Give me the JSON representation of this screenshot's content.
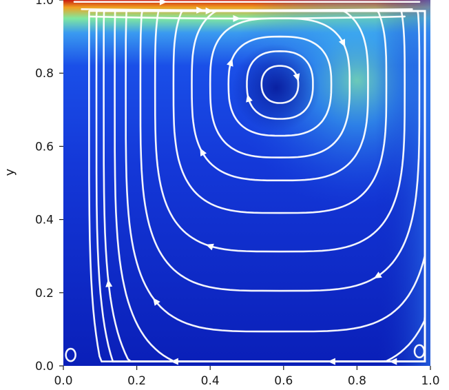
{
  "chart_data": {
    "type": "streamplot",
    "description_fields": "lid-driven cavity velocity magnitude with streamlines",
    "title": "",
    "xlabel": "",
    "ylabel": "y",
    "xlim": [
      0.0,
      1.0
    ],
    "ylim": [
      0.0,
      1.0
    ],
    "x_ticks": [
      "0.0",
      "0.2",
      "0.4",
      "0.6",
      "0.8",
      "1.0"
    ],
    "y_ticks": [
      "0.0",
      "0.2",
      "0.4",
      "0.6",
      "0.8",
      "1.0"
    ],
    "colormap": "jet",
    "vortex_center": {
      "x": 0.59,
      "y": 0.77
    },
    "lid_velocity_color": "#d21a12",
    "background_color": "#0a22c8",
    "streamline_color": "#ffffff",
    "grid": false,
    "legend": "none",
    "streamlines": [
      {
        "rx": 0.05,
        "ry": 0.05,
        "arrow_angle": 20
      },
      {
        "rx": 0.09,
        "ry": 0.09,
        "arrow_angle": 200
      },
      {
        "rx": 0.14,
        "ry": 0.13,
        "arrow_angle": 160
      },
      {
        "rx": 0.19,
        "ry": 0.18,
        "arrow_angle": 30
      },
      {
        "rx": 0.24,
        "ry": 0.23,
        "arrow_angle": 215
      },
      {
        "rx": 0.29,
        "ry": 0.3,
        "arrow_angle": 120
      },
      {
        "rx": 0.34,
        "ry": 0.38,
        "arrow_angle": 250
      },
      {
        "rx": 0.38,
        "ry": 0.46,
        "arrow_angle": 300
      },
      {
        "rx": 0.42,
        "ry": 0.54,
        "arrow_angle": 230
      },
      {
        "rx": 0.45,
        "ry": 0.62,
        "arrow_angle": 275
      },
      {
        "rx": 0.48,
        "ry": 0.69,
        "arrow_angle": 200
      },
      {
        "rx": 0.5,
        "ry": 0.74,
        "arrow_angle": 290
      },
      {
        "rx": 0.52,
        "ry": 0.79,
        "arrow_angle": 255
      }
    ],
    "corner_eddies": [
      {
        "x": 0.02,
        "y": 0.03
      },
      {
        "x": 0.97,
        "y": 0.04
      }
    ]
  }
}
